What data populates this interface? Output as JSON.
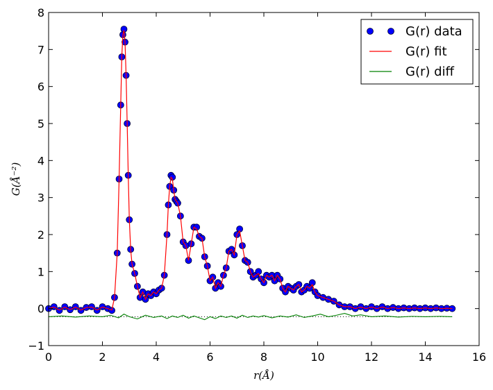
{
  "chart_data": {
    "type": "line",
    "xlabel": "r(Å)",
    "ylabel": "G(Å⁻²)",
    "xlim": [
      0,
      16
    ],
    "ylim": [
      -1,
      8
    ],
    "xticks": [
      "0",
      "2",
      "4",
      "6",
      "8",
      "10",
      "12",
      "14",
      "16"
    ],
    "yticks": [
      "−1",
      "0",
      "1",
      "2",
      "3",
      "4",
      "5",
      "6",
      "7",
      "8"
    ],
    "legend_position": "top-right",
    "colors": {
      "data": "#0000ff",
      "data_edge": "#000033",
      "fit": "#ff0000",
      "diff": "#008000",
      "baseline": "#000000"
    },
    "baseline_offset": -0.22,
    "series": [
      {
        "name": "G(r) data",
        "style": "markers",
        "x": [
          0.0,
          0.2,
          0.4,
          0.6,
          0.8,
          1.0,
          1.2,
          1.4,
          1.6,
          1.8,
          2.0,
          2.2,
          2.35,
          2.45,
          2.55,
          2.62,
          2.68,
          2.72,
          2.76,
          2.8,
          2.84,
          2.88,
          2.92,
          2.96,
          3.0,
          3.05,
          3.1,
          3.2,
          3.3,
          3.4,
          3.5,
          3.6,
          3.7,
          3.8,
          3.9,
          4.0,
          4.1,
          4.2,
          4.3,
          4.4,
          4.45,
          4.5,
          4.55,
          4.6,
          4.65,
          4.7,
          4.75,
          4.8,
          4.9,
          5.0,
          5.1,
          5.2,
          5.3,
          5.4,
          5.5,
          5.6,
          5.7,
          5.8,
          5.9,
          6.0,
          6.1,
          6.2,
          6.3,
          6.4,
          6.5,
          6.6,
          6.7,
          6.8,
          6.9,
          7.0,
          7.1,
          7.2,
          7.3,
          7.4,
          7.5,
          7.6,
          7.7,
          7.8,
          7.9,
          8.0,
          8.1,
          8.2,
          8.3,
          8.4,
          8.5,
          8.6,
          8.7,
          8.8,
          8.9,
          9.0,
          9.1,
          9.2,
          9.3,
          9.4,
          9.5,
          9.6,
          9.7,
          9.8,
          9.9,
          10.0,
          10.2,
          10.4,
          10.6,
          10.8,
          11.0,
          11.2,
          11.4,
          11.6,
          11.8,
          12.0,
          12.2,
          12.4,
          12.6,
          12.8,
          13.0,
          13.2,
          13.4,
          13.6,
          13.8,
          14.0,
          14.2,
          14.4,
          14.6,
          14.8,
          15.0
        ],
        "y": [
          0.0,
          0.05,
          -0.05,
          0.05,
          -0.03,
          0.05,
          -0.05,
          0.03,
          0.05,
          -0.05,
          0.05,
          0.0,
          -0.05,
          0.3,
          1.5,
          3.5,
          5.5,
          6.8,
          7.4,
          7.55,
          7.2,
          6.3,
          5.0,
          3.6,
          2.4,
          1.6,
          1.2,
          0.95,
          0.6,
          0.3,
          0.45,
          0.25,
          0.4,
          0.35,
          0.45,
          0.4,
          0.5,
          0.55,
          0.9,
          2.0,
          2.8,
          3.3,
          3.6,
          3.55,
          3.2,
          2.95,
          2.9,
          2.85,
          2.5,
          1.8,
          1.7,
          1.3,
          1.75,
          2.2,
          2.2,
          1.95,
          1.9,
          1.4,
          1.15,
          0.75,
          0.85,
          0.55,
          0.7,
          0.6,
          0.9,
          1.1,
          1.55,
          1.6,
          1.45,
          2.0,
          2.15,
          1.7,
          1.3,
          1.25,
          1.0,
          0.85,
          0.9,
          1.0,
          0.8,
          0.7,
          0.9,
          0.85,
          0.9,
          0.75,
          0.9,
          0.8,
          0.55,
          0.45,
          0.6,
          0.55,
          0.5,
          0.6,
          0.65,
          0.45,
          0.5,
          0.6,
          0.55,
          0.7,
          0.45,
          0.35,
          0.3,
          0.25,
          0.2,
          0.1,
          0.05,
          0.05,
          0.0,
          0.05,
          0.0,
          0.05,
          0.0,
          0.05,
          0.0,
          0.03,
          0.0,
          0.02,
          0.0,
          0.02,
          0.0,
          0.02,
          0.0,
          0.02,
          0.0,
          0.01,
          0.0
        ]
      },
      {
        "name": "G(r) fit",
        "style": "line",
        "x": [
          0.0,
          0.2,
          0.4,
          0.6,
          0.8,
          1.0,
          1.2,
          1.4,
          1.6,
          1.8,
          2.0,
          2.2,
          2.35,
          2.45,
          2.55,
          2.62,
          2.68,
          2.72,
          2.76,
          2.8,
          2.84,
          2.88,
          2.92,
          2.96,
          3.0,
          3.05,
          3.1,
          3.2,
          3.3,
          3.4,
          3.5,
          3.6,
          3.7,
          3.8,
          3.9,
          4.0,
          4.1,
          4.2,
          4.3,
          4.4,
          4.45,
          4.5,
          4.55,
          4.6,
          4.65,
          4.7,
          4.75,
          4.8,
          4.9,
          5.0,
          5.1,
          5.2,
          5.3,
          5.4,
          5.5,
          5.6,
          5.7,
          5.8,
          5.9,
          6.0,
          6.1,
          6.2,
          6.3,
          6.4,
          6.5,
          6.6,
          6.7,
          6.8,
          6.9,
          7.0,
          7.1,
          7.2,
          7.3,
          7.4,
          7.5,
          7.6,
          7.7,
          7.8,
          7.9,
          8.0,
          8.1,
          8.2,
          8.3,
          8.4,
          8.5,
          8.6,
          8.7,
          8.8,
          8.9,
          9.0,
          9.1,
          9.2,
          9.3,
          9.4,
          9.5,
          9.6,
          9.7,
          9.8,
          9.9,
          10.0,
          10.2,
          10.4,
          10.6,
          10.8,
          11.0,
          11.2,
          11.4,
          11.6,
          11.8,
          12.0,
          12.2,
          12.4,
          12.6,
          12.8,
          13.0,
          13.2,
          13.4,
          13.6,
          13.8,
          14.0,
          14.2,
          14.4,
          14.6,
          14.8,
          15.0
        ],
        "y": [
          0.0,
          0.04,
          -0.04,
          0.04,
          -0.03,
          0.04,
          -0.04,
          0.03,
          0.04,
          -0.04,
          0.04,
          0.0,
          -0.04,
          0.3,
          1.5,
          3.5,
          5.5,
          6.8,
          7.4,
          7.52,
          7.2,
          6.3,
          5.0,
          3.6,
          2.4,
          1.6,
          1.2,
          0.95,
          0.6,
          0.3,
          0.45,
          0.25,
          0.4,
          0.35,
          0.45,
          0.4,
          0.5,
          0.55,
          0.9,
          2.0,
          2.8,
          3.3,
          3.55,
          3.5,
          3.2,
          2.95,
          2.9,
          2.85,
          2.5,
          1.8,
          1.7,
          1.3,
          1.75,
          2.2,
          2.15,
          1.95,
          1.9,
          1.4,
          1.15,
          0.75,
          0.85,
          0.55,
          0.7,
          0.6,
          0.9,
          1.1,
          1.55,
          1.6,
          1.45,
          2.0,
          2.1,
          1.7,
          1.3,
          1.25,
          1.0,
          0.85,
          0.9,
          0.95,
          0.8,
          0.7,
          0.9,
          0.85,
          0.9,
          0.75,
          0.9,
          0.8,
          0.55,
          0.45,
          0.6,
          0.55,
          0.5,
          0.6,
          0.65,
          0.45,
          0.5,
          0.6,
          0.55,
          0.65,
          0.45,
          0.35,
          0.3,
          0.25,
          0.2,
          0.1,
          0.05,
          0.05,
          0.0,
          0.04,
          0.0,
          0.04,
          0.0,
          0.04,
          0.0,
          0.03,
          0.0,
          0.02,
          0.0,
          0.02,
          0.0,
          0.02,
          0.0,
          0.02,
          0.0,
          0.01,
          0.0
        ]
      },
      {
        "name": "G(r) diff",
        "style": "line",
        "x": [
          0.0,
          0.5,
          1.0,
          1.5,
          2.0,
          2.3,
          2.6,
          2.8,
          3.0,
          3.3,
          3.6,
          3.9,
          4.2,
          4.4,
          4.6,
          4.8,
          5.0,
          5.2,
          5.4,
          5.6,
          5.8,
          6.0,
          6.2,
          6.4,
          6.6,
          6.8,
          7.0,
          7.2,
          7.4,
          7.6,
          7.8,
          8.0,
          8.3,
          8.6,
          8.9,
          9.2,
          9.5,
          9.8,
          10.1,
          10.4,
          10.7,
          11.0,
          11.3,
          11.6,
          12.0,
          12.5,
          13.0,
          13.5,
          14.0,
          14.5,
          15.0
        ],
        "y": [
          -0.22,
          -0.2,
          -0.23,
          -0.2,
          -0.22,
          -0.18,
          -0.25,
          -0.15,
          -0.22,
          -0.28,
          -0.18,
          -0.24,
          -0.2,
          -0.27,
          -0.2,
          -0.24,
          -0.18,
          -0.26,
          -0.2,
          -0.25,
          -0.3,
          -0.22,
          -0.27,
          -0.2,
          -0.24,
          -0.2,
          -0.26,
          -0.18,
          -0.24,
          -0.2,
          -0.23,
          -0.19,
          -0.25,
          -0.2,
          -0.23,
          -0.17,
          -0.24,
          -0.2,
          -0.15,
          -0.22,
          -0.18,
          -0.13,
          -0.2,
          -0.17,
          -0.22,
          -0.2,
          -0.23,
          -0.21,
          -0.22,
          -0.21,
          -0.22
        ]
      }
    ]
  }
}
